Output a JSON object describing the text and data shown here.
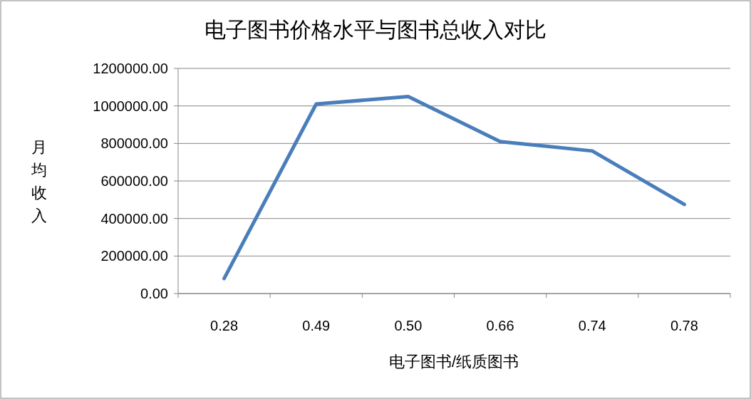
{
  "chart_data": {
    "type": "line",
    "title": "电子图书价格水平与图书总收入对比",
    "xlabel": "电子图书/纸质图书",
    "ylabel": "月均收入",
    "categories": [
      "0.28",
      "0.49",
      "0.50",
      "0.66",
      "0.74",
      "0.78"
    ],
    "series": [
      {
        "color": "#4a7ebb",
        "values": [
          80000,
          1010000,
          1050000,
          810000,
          760000,
          475000
        ]
      }
    ],
    "ylim": [
      0,
      1200000
    ],
    "yticks": [
      {
        "value": 0,
        "label": "0.00"
      },
      {
        "value": 200000,
        "label": "200000.00"
      },
      {
        "value": 400000,
        "label": "400000.00"
      },
      {
        "value": 600000,
        "label": "600000.00"
      },
      {
        "value": 800000,
        "label": "800000.00"
      },
      {
        "value": 1000000,
        "label": "1000000.00"
      },
      {
        "value": 1200000,
        "label": "1200000.00"
      }
    ],
    "grid": "y",
    "marker": "none",
    "line_style": "solid"
  }
}
